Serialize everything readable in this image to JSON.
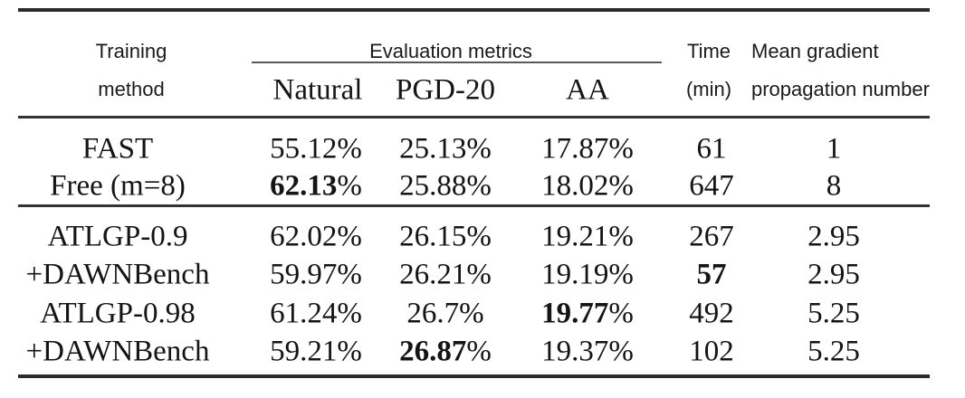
{
  "page": {
    "background_color": "#ffffff",
    "text_color": "#141414",
    "rule_color": "#2b2b2b"
  },
  "table": {
    "header": {
      "training_line1": "Training",
      "training_line2": "method",
      "eval_group": "Evaluation metrics",
      "sub_natural": "Natural",
      "sub_pgd": "PGD-20",
      "sub_aa": "AA",
      "time_line1": "Time",
      "time_line2": "(min)",
      "mgpn_line1": "Mean gradient",
      "mgpn_line2": "propagation number"
    },
    "rows": [
      {
        "cells": [
          {
            "b": "",
            "r": "FAST"
          },
          {
            "b": "",
            "r": "55.12%"
          },
          {
            "b": "",
            "r": "25.13%"
          },
          {
            "b": "",
            "r": "17.87%"
          },
          {
            "b": "",
            "r": "61"
          },
          {
            "b": "",
            "r": "1"
          }
        ]
      },
      {
        "cells": [
          {
            "b": "",
            "r": "Free (m=8)"
          },
          {
            "b": "62.13",
            "r": "%"
          },
          {
            "b": "",
            "r": "25.88%"
          },
          {
            "b": "",
            "r": "18.02%"
          },
          {
            "b": "",
            "r": "647"
          },
          {
            "b": "",
            "r": "8"
          }
        ]
      },
      {
        "cells": [
          {
            "b": "",
            "r": "ATLGP-0.9"
          },
          {
            "b": "",
            "r": "62.02%"
          },
          {
            "b": "",
            "r": "26.15%"
          },
          {
            "b": "",
            "r": "19.21%"
          },
          {
            "b": "",
            "r": "267"
          },
          {
            "b": "",
            "r": "2.95"
          }
        ]
      },
      {
        "cells": [
          {
            "b": "",
            "r": "+DAWNBench"
          },
          {
            "b": "",
            "r": "59.97%"
          },
          {
            "b": "",
            "r": "26.21%"
          },
          {
            "b": "",
            "r": "19.19%"
          },
          {
            "b": "57",
            "r": ""
          },
          {
            "b": "",
            "r": "2.95"
          }
        ]
      },
      {
        "cells": [
          {
            "b": "",
            "r": "ATLGP-0.98"
          },
          {
            "b": "",
            "r": "61.24%"
          },
          {
            "b": "",
            "r": "26.7%"
          },
          {
            "b": "19.77",
            "r": "%"
          },
          {
            "b": "",
            "r": "492"
          },
          {
            "b": "",
            "r": "5.25"
          }
        ]
      },
      {
        "cells": [
          {
            "b": "",
            "r": "+DAWNBench"
          },
          {
            "b": "",
            "r": "59.21%"
          },
          {
            "b": "26.87",
            "r": "%"
          },
          {
            "b": "",
            "r": "19.37%"
          },
          {
            "b": "",
            "r": "102"
          },
          {
            "b": "",
            "r": "5.25"
          }
        ]
      }
    ]
  }
}
